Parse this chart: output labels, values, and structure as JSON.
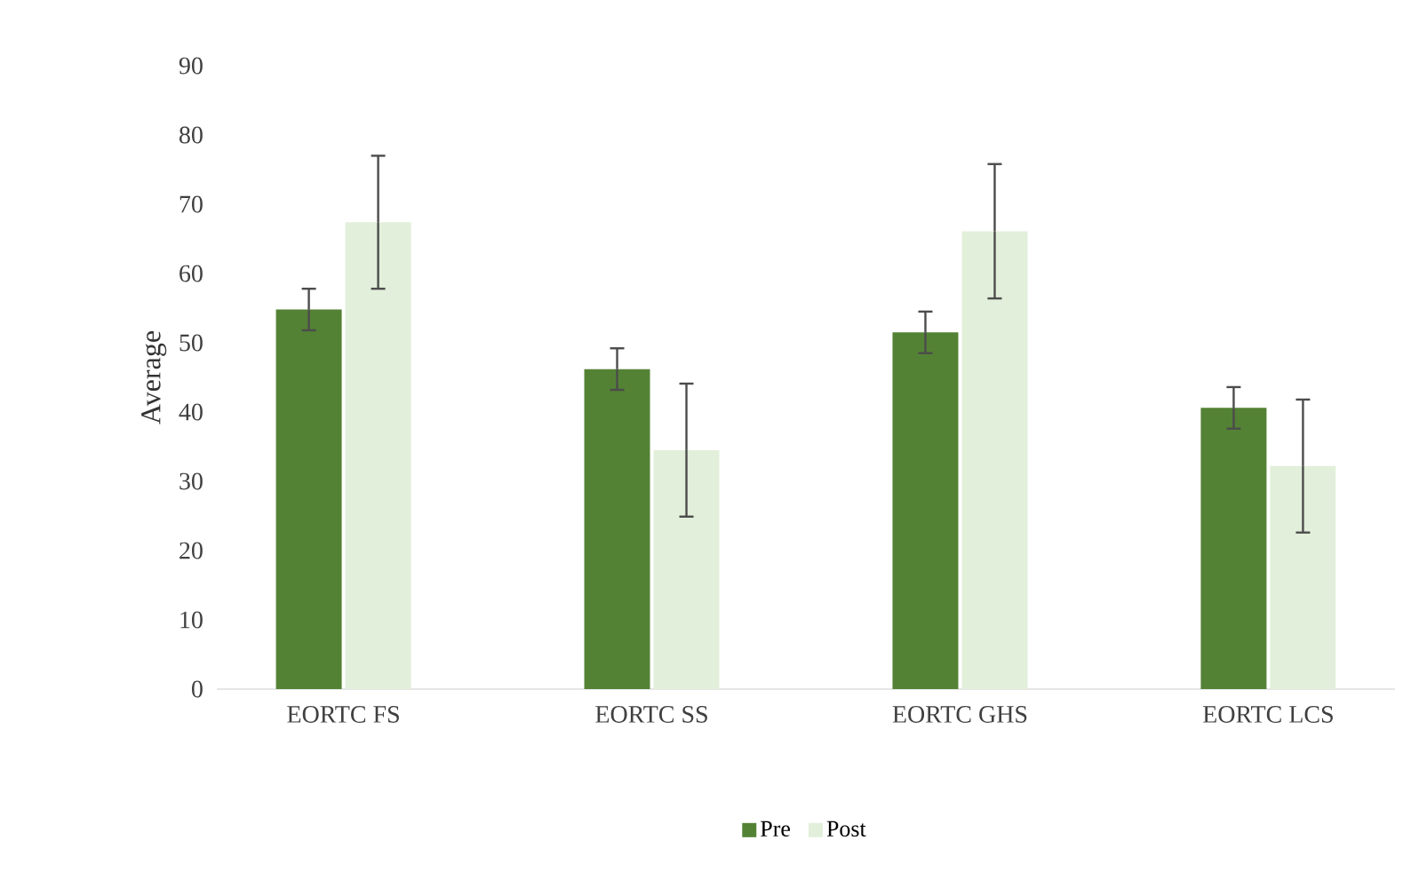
{
  "chart_data": {
    "type": "bar",
    "ylabel": "Average",
    "categories": [
      "EORTC FS",
      "EORTC SS",
      "EORTC GHS",
      "EORTC LCS"
    ],
    "series": [
      {
        "name": "Pre",
        "color": "#548235",
        "values": [
          54.8,
          46.2,
          51.5,
          40.6
        ],
        "errors": [
          3,
          3,
          3,
          3
        ]
      },
      {
        "name": "Post",
        "color": "#e2efda",
        "values": [
          67.4,
          34.5,
          66.1,
          32.2
        ],
        "errors": [
          9.6,
          9.6,
          9.7,
          9.6
        ]
      }
    ],
    "ylim": [
      0,
      90
    ],
    "yticks": [
      0,
      10,
      20,
      30,
      40,
      50,
      60,
      70,
      80,
      90
    ],
    "grid": false,
    "legend": "bottom"
  }
}
